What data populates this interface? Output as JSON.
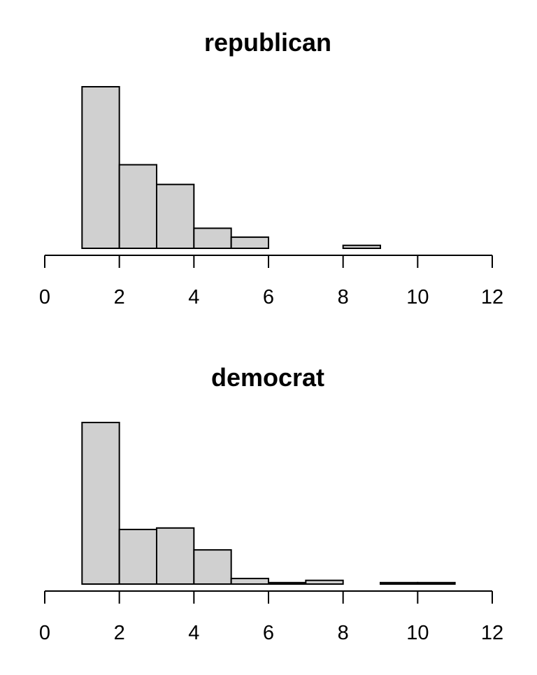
{
  "chart_data": [
    {
      "type": "bar",
      "title": "republican",
      "xlabel": "",
      "ylabel": "",
      "xlim": [
        0,
        12
      ],
      "xticks": [
        "0",
        "2",
        "4",
        "6",
        "8",
        "10",
        "12"
      ],
      "bin_edges": [
        1,
        2,
        3,
        4,
        5,
        6,
        7,
        8,
        9
      ],
      "values": [
        0.435,
        0.225,
        0.172,
        0.054,
        0.03,
        0.0,
        0.0,
        0.008
      ],
      "y_axis_shown": false,
      "grid": false,
      "bar_color": "#d0d0d0"
    },
    {
      "type": "bar",
      "title": "democrat",
      "xlabel": "",
      "ylabel": "",
      "xlim": [
        0,
        12
      ],
      "xticks": [
        "0",
        "2",
        "4",
        "6",
        "8",
        "10",
        "12"
      ],
      "bin_edges": [
        1,
        2,
        3,
        4,
        5,
        6,
        7,
        8,
        9,
        10,
        11
      ],
      "values": [
        0.435,
        0.147,
        0.151,
        0.092,
        0.015,
        0.004,
        0.01,
        0.0,
        0.004,
        0.004
      ],
      "y_axis_shown": false,
      "grid": false,
      "bar_color": "#d0d0d0"
    }
  ]
}
